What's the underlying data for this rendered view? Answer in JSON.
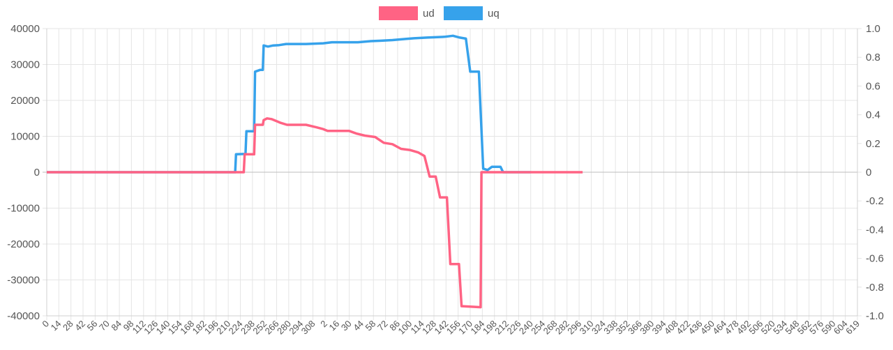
{
  "chart_data": {
    "type": "line",
    "title": "",
    "xlabel": "",
    "ylabel": "",
    "legend_position": "top-center",
    "grid": true,
    "x_tick_labels": [
      "0",
      "14",
      "28",
      "42",
      "56",
      "70",
      "84",
      "98",
      "112",
      "126",
      "140",
      "154",
      "168",
      "182",
      "196",
      "210",
      "224",
      "238",
      "252",
      "266",
      "280",
      "294",
      "308",
      "2",
      "16",
      "30",
      "44",
      "58",
      "72",
      "86",
      "100",
      "114",
      "128",
      "142",
      "156",
      "170",
      "184",
      "198",
      "212",
      "226",
      "240",
      "254",
      "268",
      "282",
      "296",
      "310",
      "324",
      "338",
      "352",
      "366",
      "380",
      "394",
      "408",
      "422",
      "436",
      "450",
      "464",
      "478",
      "492",
      "506",
      "520",
      "534",
      "548",
      "562",
      "576",
      "590",
      "604",
      "619"
    ],
    "y_left": {
      "ylim": [
        -40000,
        40000
      ],
      "ticks": [
        "40000",
        "30000",
        "20000",
        "10000",
        "0",
        "-10000",
        "-20000",
        "-30000",
        "-40000"
      ]
    },
    "y_right": {
      "ylim": [
        -1.0,
        1.0
      ],
      "ticks": [
        "1.0",
        "0.8",
        "0.6",
        "0.4",
        "0.2",
        "0",
        "-0.2",
        "-0.4",
        "-0.6",
        "-0.8",
        "-1.0"
      ]
    },
    "series": [
      {
        "name": "uq",
        "color": "#36a2eb",
        "points": [
          [
            0,
            0
          ],
          [
            218,
            0
          ],
          [
            219,
            5000
          ],
          [
            230,
            5100
          ],
          [
            231,
            11400
          ],
          [
            240,
            11400
          ],
          [
            241,
            28000
          ],
          [
            247,
            28500
          ],
          [
            250,
            28500
          ],
          [
            251,
            35300
          ],
          [
            256,
            35000
          ],
          [
            262,
            35300
          ],
          [
            269,
            35400
          ],
          [
            277,
            35700
          ],
          [
            300,
            35700
          ],
          [
            310,
            35800
          ],
          [
            320,
            35900
          ],
          [
            330,
            36200
          ],
          [
            360,
            36200
          ],
          [
            375,
            36500
          ],
          [
            385,
            36600
          ],
          [
            400,
            36800
          ],
          [
            415,
            37100
          ],
          [
            425,
            37300
          ],
          [
            440,
            37500
          ],
          [
            460,
            37700
          ],
          [
            470,
            38000
          ],
          [
            478,
            37500
          ],
          [
            485,
            37200
          ],
          [
            490,
            28000
          ],
          [
            500,
            28000
          ],
          [
            505,
            1000
          ],
          [
            510,
            600
          ],
          [
            515,
            1500
          ],
          [
            525,
            1500
          ],
          [
            528,
            0
          ],
          [
            540,
            0
          ],
          [
            550,
            0
          ],
          [
            560,
            0
          ]
        ]
      },
      {
        "name": "ud",
        "color": "#ff6384",
        "points": [
          [
            0,
            0
          ],
          [
            228,
            0
          ],
          [
            229,
            5000
          ],
          [
            240,
            5000
          ],
          [
            241,
            13200
          ],
          [
            250,
            13200
          ],
          [
            251,
            14500
          ],
          [
            255,
            15000
          ],
          [
            260,
            14800
          ],
          [
            263,
            14500
          ],
          [
            270,
            13800
          ],
          [
            278,
            13200
          ],
          [
            285,
            13200
          ],
          [
            300,
            13200
          ],
          [
            312,
            12500
          ],
          [
            320,
            12000
          ],
          [
            325,
            11500
          ],
          [
            350,
            11500
          ],
          [
            358,
            10800
          ],
          [
            368,
            10200
          ],
          [
            380,
            9800
          ],
          [
            390,
            8200
          ],
          [
            400,
            7800
          ],
          [
            410,
            6500
          ],
          [
            420,
            6200
          ],
          [
            430,
            5500
          ],
          [
            437,
            4500
          ],
          [
            443,
            -1200
          ],
          [
            450,
            -1200
          ],
          [
            455,
            -7000
          ],
          [
            463,
            -7000
          ],
          [
            467,
            -25600
          ],
          [
            477,
            -25600
          ],
          [
            480,
            -37300
          ],
          [
            495,
            -37500
          ],
          [
            502,
            -37600
          ],
          [
            503,
            0
          ],
          [
            520,
            0
          ],
          [
            560,
            0
          ],
          [
            620,
            0
          ]
        ]
      }
    ]
  }
}
